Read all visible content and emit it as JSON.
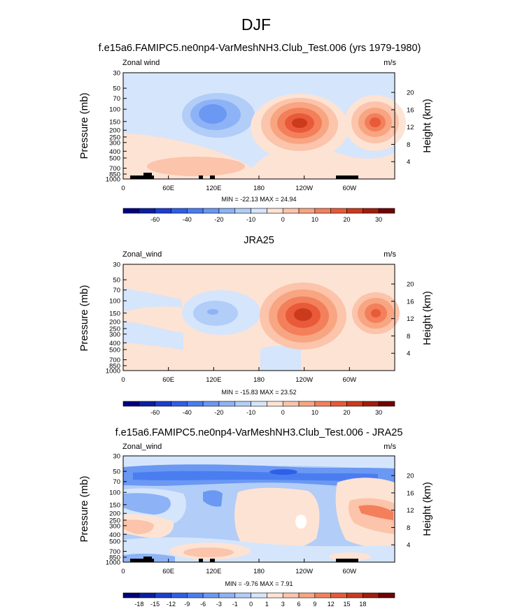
{
  "title": "DJF",
  "chart_data": [
    {
      "type": "heatmap",
      "title": "f.e15a6.FAMIPC5.ne0np4-VarMeshNH3.Club_Test.006 (yrs 1979-1980)",
      "left_label": "Zonal wind",
      "units": "m/s",
      "ylabel": "Pressure (mb)",
      "ylabel_right": "Height (km)",
      "x_ticks": [
        "0",
        "60E",
        "120E",
        "180",
        "120W",
        "60W"
      ],
      "y_ticks": [
        "30",
        "50",
        "70",
        "100",
        "150",
        "200",
        "250",
        "300",
        "400",
        "500",
        "700",
        "850",
        "1000"
      ],
      "y_ticks_right": [
        "20",
        "16",
        "12",
        "8",
        "4"
      ],
      "min": -22.13,
      "max": 24.94,
      "stats_text": "MIN = -22.13  MAX = 24.94",
      "colorbar_labels": [
        "-60",
        "-40",
        "-20",
        "-10",
        "0",
        "10",
        "20",
        "30"
      ],
      "colorbar_levels": [
        -70,
        -60,
        -50,
        -40,
        -30,
        -20,
        -15,
        -10,
        -5,
        0,
        5,
        10,
        15,
        20,
        25,
        30,
        35
      ]
    },
    {
      "type": "heatmap",
      "title": "JRA25",
      "left_label": "Zonal_wind",
      "units": "m/s",
      "ylabel": "Pressure (mb)",
      "ylabel_right": "Height (km)",
      "x_ticks": [
        "0",
        "60E",
        "120E",
        "180",
        "120W",
        "60W"
      ],
      "y_ticks": [
        "30",
        "50",
        "70",
        "100",
        "150",
        "200",
        "250",
        "300",
        "400",
        "500",
        "700",
        "850",
        "1000"
      ],
      "y_ticks_right": [
        "20",
        "16",
        "12",
        "8",
        "4"
      ],
      "min": -15.83,
      "max": 23.52,
      "stats_text": "MIN = -15.83  MAX = 23.52",
      "colorbar_labels": [
        "-60",
        "-40",
        "-20",
        "-10",
        "0",
        "10",
        "20",
        "30"
      ],
      "colorbar_levels": [
        -70,
        -60,
        -50,
        -40,
        -30,
        -20,
        -15,
        -10,
        -5,
        0,
        5,
        10,
        15,
        20,
        25,
        30,
        35
      ]
    },
    {
      "type": "heatmap",
      "title": "f.e15a6.FAMIPC5.ne0np4-VarMeshNH3.Club_Test.006 - JRA25",
      "left_label": "Zonal_wind",
      "units": "m/s",
      "ylabel": "Pressure (mb)",
      "ylabel_right": "Height (km)",
      "x_ticks": [
        "0",
        "60E",
        "120E",
        "180",
        "120W",
        "60W"
      ],
      "y_ticks": [
        "30",
        "50",
        "70",
        "100",
        "150",
        "200",
        "250",
        "300",
        "400",
        "500",
        "700",
        "850",
        "1000"
      ],
      "y_ticks_right": [
        "20",
        "16",
        "12",
        "8",
        "4"
      ],
      "min": -9.76,
      "max": 7.91,
      "stats_text": "MIN = -9.76  MAX =  7.91",
      "colorbar_labels": [
        "-18",
        "-15",
        "-12",
        "-9",
        "-6",
        "-3",
        "-1",
        "0",
        "1",
        "3",
        "6",
        "9",
        "12",
        "15",
        "18"
      ],
      "colorbar_levels": [
        -18,
        -15,
        -12,
        -9,
        -6,
        -3,
        -1,
        0,
        1,
        3,
        6,
        9,
        12,
        15,
        18
      ]
    }
  ],
  "colors": {
    "scale": [
      "#00007f",
      "#0a1fa0",
      "#1e3ed0",
      "#2f5fe8",
      "#4a7df0",
      "#6a98f3",
      "#8db3f6",
      "#b1cdf8",
      "#d5e5fb",
      "#fde3d4",
      "#fbc4ab",
      "#f8a582",
      "#f3805b",
      "#e85a39",
      "#cc3a1d",
      "#a21d0c",
      "#700303"
    ]
  }
}
